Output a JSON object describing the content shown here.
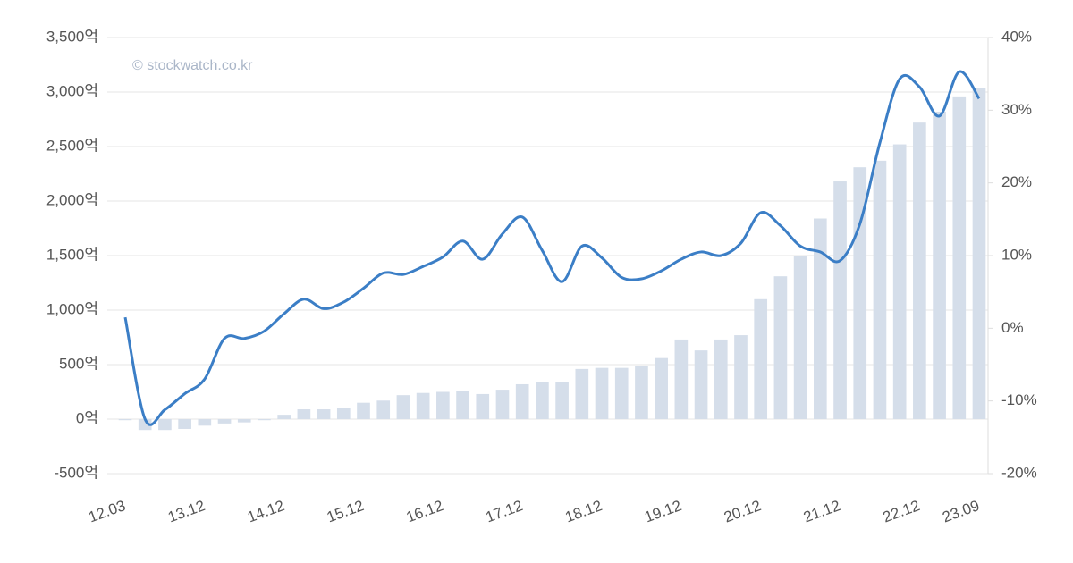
{
  "chart_data": {
    "type": "bar-line",
    "watermark": "© stockwatch.co.kr",
    "categories": [
      "12.03",
      null,
      null,
      null,
      "13.12",
      null,
      null,
      null,
      "14.12",
      null,
      null,
      null,
      "15.12",
      null,
      null,
      null,
      "16.12",
      null,
      null,
      null,
      "17.12",
      null,
      null,
      null,
      "18.12",
      null,
      null,
      null,
      "19.12",
      null,
      null,
      null,
      "20.12",
      null,
      null,
      null,
      "21.12",
      null,
      null,
      null,
      "22.12",
      null,
      null,
      "23.09"
    ],
    "series": [
      {
        "type": "bar",
        "color": "#d5deea",
        "values": [
          -10,
          -100,
          -100,
          -90,
          -60,
          -40,
          -30,
          -10,
          40,
          90,
          90,
          100,
          150,
          170,
          220,
          240,
          250,
          260,
          230,
          270,
          320,
          340,
          340,
          460,
          470,
          470,
          490,
          560,
          730,
          630,
          730,
          770,
          1100,
          1310,
          1500,
          1840,
          2180,
          2310,
          2370,
          2520,
          2720,
          2820,
          2960,
          3040
        ]
      },
      {
        "type": "line",
        "axis": "y2",
        "color": "#3b7ec6",
        "values": [
          1.5,
          -12.5,
          -11.2,
          -9,
          -7,
          -1.4,
          -1.4,
          -0.4,
          2,
          4,
          2.7,
          3.6,
          5.5,
          7.6,
          7.4,
          8.5,
          9.8,
          12,
          9.5,
          13,
          15.3,
          10.7,
          6.4,
          11.3,
          9.7,
          7,
          6.8,
          7.9,
          9.5,
          10.5,
          10,
          11.7,
          15.9,
          14.1,
          11.3,
          10.5,
          9.3,
          14.4,
          25.5,
          34.3,
          33.2,
          29.2,
          35.3,
          31.6
        ]
      }
    ],
    "ylim": [
      -500,
      3500
    ],
    "yticks": [
      {
        "value": -500,
        "label": "-500억"
      },
      {
        "value": 0,
        "label": "0억"
      },
      {
        "value": 500,
        "label": "500억"
      },
      {
        "value": 1000,
        "label": "1,000억"
      },
      {
        "value": 1500,
        "label": "1,500억"
      },
      {
        "value": 2000,
        "label": "2,000억"
      },
      {
        "value": 2500,
        "label": "2,500억"
      },
      {
        "value": 3000,
        "label": "3,000억"
      },
      {
        "value": 3500,
        "label": "3,500억"
      }
    ],
    "y2lim": [
      -20,
      40
    ],
    "y2ticks": [
      {
        "value": -20,
        "label": "-20%"
      },
      {
        "value": -10,
        "label": "-10%"
      },
      {
        "value": 0,
        "label": "0%"
      },
      {
        "value": 10,
        "label": "10%"
      },
      {
        "value": 20,
        "label": "20%"
      },
      {
        "value": 30,
        "label": "30%"
      },
      {
        "value": 40,
        "label": "40%"
      }
    ],
    "grid": true
  }
}
